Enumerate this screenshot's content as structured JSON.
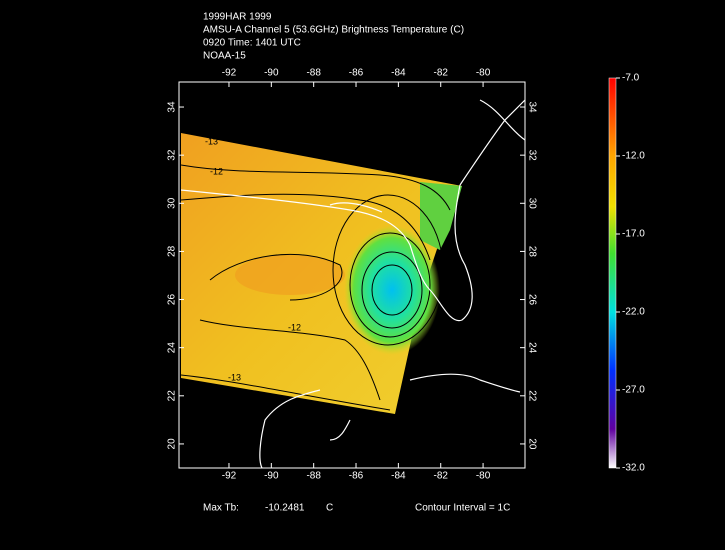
{
  "header": {
    "lines": [
      "1999HAR 1999",
      "AMSU-A Channel 5 (53.6GHz) Brightness Temperature (C)",
      "0920 Time: 1401 UTC",
      "NOAA-15"
    ]
  },
  "map": {
    "lon_lim": [
      -94.36,
      -78.02
    ],
    "lat_lim": [
      19.0,
      35.04
    ],
    "lon_ticks": [
      -92,
      -90,
      -88,
      -86,
      -84,
      -82,
      -80
    ],
    "lat_ticks": [
      20,
      22,
      24,
      26,
      28,
      30,
      32,
      34
    ],
    "contour_labels": [
      "-13",
      "-12",
      "-12",
      "-13"
    ]
  },
  "colorbar": {
    "lim": [
      -32,
      -7
    ],
    "ticks": [
      {
        "value": -7,
        "label": "-7.0"
      },
      {
        "value": -12,
        "label": "-12.0"
      },
      {
        "value": -17,
        "label": "-17.0"
      },
      {
        "value": -22,
        "label": "-22.0"
      },
      {
        "value": -27,
        "label": "-27.0"
      },
      {
        "value": -32,
        "label": "-32.0"
      }
    ]
  },
  "footer": {
    "max_label": "Max Tb:",
    "max_value": "-10.2481",
    "unit": "C",
    "contour_interval": "Contour Interval = 1C"
  }
}
